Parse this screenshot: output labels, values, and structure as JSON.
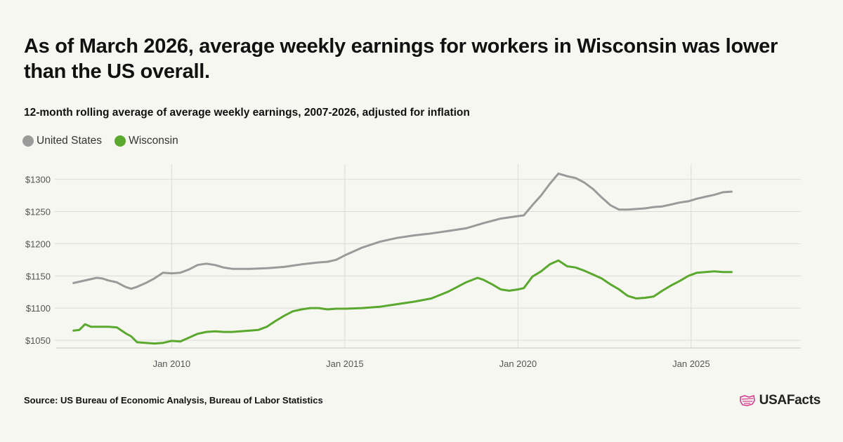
{
  "header": {
    "title": "As of March 2026, average weekly earnings for workers in Wisconsin was lower than the US overall.",
    "subtitle": "12-month rolling average of average weekly earnings, 2007-2026, adjusted for inflation"
  },
  "footer": {
    "source": "Source: US Bureau of Economic Analysis, Bureau of Labor Statistics",
    "logo_text": "USAFacts"
  },
  "colors": {
    "united_states": "#9a9a9a",
    "wisconsin": "#5aa82e",
    "logo_accent": "#d43b8e"
  },
  "chart_data": {
    "type": "line",
    "x_type": "date",
    "xlim": [
      "2006-09",
      "2028-03"
    ],
    "ylim": [
      1038,
      1328
    ],
    "y_ticks": [
      1050,
      1100,
      1150,
      1200,
      1250,
      1300
    ],
    "y_tick_labels": [
      "$1050",
      "$1100",
      "$1150",
      "$1200",
      "$1250",
      "$1300"
    ],
    "x_ticks": [
      "2010-01",
      "2015-01",
      "2020-01",
      "2025-01"
    ],
    "x_tick_labels": [
      "Jan 2010",
      "Jan 2015",
      "Jan 2020",
      "Jan 2025"
    ],
    "grid": true,
    "legend_position": "top-left",
    "series": [
      {
        "name": "United States",
        "color": "#9a9a9a",
        "points": [
          [
            "2007-03",
            1139
          ],
          [
            "2007-06",
            1142
          ],
          [
            "2007-09",
            1145
          ],
          [
            "2007-11",
            1147
          ],
          [
            "2008-01",
            1146
          ],
          [
            "2008-03",
            1143
          ],
          [
            "2008-06",
            1140
          ],
          [
            "2008-09",
            1133
          ],
          [
            "2008-11",
            1130
          ],
          [
            "2009-01",
            1133
          ],
          [
            "2009-04",
            1139
          ],
          [
            "2009-07",
            1146
          ],
          [
            "2009-10",
            1155
          ],
          [
            "2010-01",
            1154
          ],
          [
            "2010-04",
            1155
          ],
          [
            "2010-07",
            1160
          ],
          [
            "2010-10",
            1167
          ],
          [
            "2011-01",
            1169
          ],
          [
            "2011-04",
            1167
          ],
          [
            "2011-07",
            1163
          ],
          [
            "2011-10",
            1161
          ],
          [
            "2012-04",
            1161
          ],
          [
            "2012-10",
            1162
          ],
          [
            "2013-04",
            1164
          ],
          [
            "2013-10",
            1168
          ],
          [
            "2014-04",
            1171
          ],
          [
            "2014-07",
            1172
          ],
          [
            "2014-10",
            1175
          ],
          [
            "2015-01",
            1182
          ],
          [
            "2015-07",
            1194
          ],
          [
            "2016-01",
            1203
          ],
          [
            "2016-07",
            1209
          ],
          [
            "2017-01",
            1213
          ],
          [
            "2017-07",
            1216
          ],
          [
            "2018-01",
            1220
          ],
          [
            "2018-07",
            1224
          ],
          [
            "2019-01",
            1232
          ],
          [
            "2019-07",
            1239
          ],
          [
            "2020-01",
            1243
          ],
          [
            "2020-03",
            1244
          ],
          [
            "2020-06",
            1260
          ],
          [
            "2020-09",
            1275
          ],
          [
            "2020-12",
            1293
          ],
          [
            "2021-03",
            1309
          ],
          [
            "2021-06",
            1305
          ],
          [
            "2021-09",
            1302
          ],
          [
            "2021-12",
            1295
          ],
          [
            "2022-03",
            1285
          ],
          [
            "2022-06",
            1272
          ],
          [
            "2022-09",
            1260
          ],
          [
            "2022-12",
            1253
          ],
          [
            "2023-03",
            1253
          ],
          [
            "2023-06",
            1254
          ],
          [
            "2023-09",
            1255
          ],
          [
            "2023-12",
            1257
          ],
          [
            "2024-03",
            1258
          ],
          [
            "2024-06",
            1261
          ],
          [
            "2024-09",
            1264
          ],
          [
            "2024-12",
            1266
          ],
          [
            "2025-03",
            1270
          ],
          [
            "2025-06",
            1273
          ],
          [
            "2025-09",
            1276
          ],
          [
            "2025-12",
            1280
          ],
          [
            "2026-03",
            1281
          ]
        ]
      },
      {
        "name": "Wisconsin",
        "color": "#5aa82e",
        "points": [
          [
            "2007-03",
            1065
          ],
          [
            "2007-05",
            1066
          ],
          [
            "2007-07",
            1075
          ],
          [
            "2007-09",
            1071
          ],
          [
            "2007-12",
            1071
          ],
          [
            "2008-03",
            1071
          ],
          [
            "2008-06",
            1070
          ],
          [
            "2008-09",
            1061
          ],
          [
            "2008-11",
            1056
          ],
          [
            "2009-01",
            1047
          ],
          [
            "2009-04",
            1046
          ],
          [
            "2009-07",
            1045
          ],
          [
            "2009-10",
            1046
          ],
          [
            "2010-01",
            1049
          ],
          [
            "2010-04",
            1048
          ],
          [
            "2010-07",
            1054
          ],
          [
            "2010-10",
            1060
          ],
          [
            "2011-01",
            1063
          ],
          [
            "2011-04",
            1064
          ],
          [
            "2011-07",
            1063
          ],
          [
            "2011-10",
            1063
          ],
          [
            "2012-04",
            1065
          ],
          [
            "2012-07",
            1066
          ],
          [
            "2012-10",
            1071
          ],
          [
            "2013-01",
            1080
          ],
          [
            "2013-04",
            1088
          ],
          [
            "2013-07",
            1095
          ],
          [
            "2013-10",
            1098
          ],
          [
            "2014-01",
            1100
          ],
          [
            "2014-04",
            1100
          ],
          [
            "2014-07",
            1098
          ],
          [
            "2014-10",
            1099
          ],
          [
            "2015-01",
            1099
          ],
          [
            "2015-07",
            1100
          ],
          [
            "2016-01",
            1102
          ],
          [
            "2016-07",
            1106
          ],
          [
            "2017-01",
            1110
          ],
          [
            "2017-07",
            1115
          ],
          [
            "2018-01",
            1126
          ],
          [
            "2018-07",
            1140
          ],
          [
            "2018-11",
            1147
          ],
          [
            "2019-01",
            1144
          ],
          [
            "2019-04",
            1137
          ],
          [
            "2019-07",
            1129
          ],
          [
            "2019-10",
            1127
          ],
          [
            "2020-01",
            1129
          ],
          [
            "2020-03",
            1131
          ],
          [
            "2020-06",
            1149
          ],
          [
            "2020-09",
            1157
          ],
          [
            "2020-12",
            1168
          ],
          [
            "2021-03",
            1174
          ],
          [
            "2021-06",
            1165
          ],
          [
            "2021-09",
            1163
          ],
          [
            "2021-12",
            1158
          ],
          [
            "2022-03",
            1152
          ],
          [
            "2022-06",
            1146
          ],
          [
            "2022-09",
            1137
          ],
          [
            "2022-12",
            1129
          ],
          [
            "2023-03",
            1119
          ],
          [
            "2023-06",
            1115
          ],
          [
            "2023-09",
            1116
          ],
          [
            "2023-12",
            1118
          ],
          [
            "2024-03",
            1127
          ],
          [
            "2024-06",
            1135
          ],
          [
            "2024-09",
            1142
          ],
          [
            "2024-12",
            1150
          ],
          [
            "2025-03",
            1155
          ],
          [
            "2025-06",
            1156
          ],
          [
            "2025-09",
            1157
          ],
          [
            "2025-12",
            1156
          ],
          [
            "2026-03",
            1156
          ]
        ]
      }
    ]
  }
}
